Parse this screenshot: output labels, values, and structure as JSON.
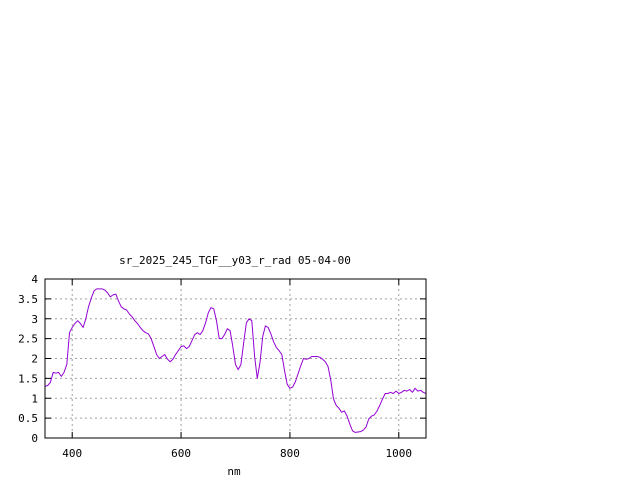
{
  "chart_data": {
    "type": "line",
    "title": "sr_2025_245_TGF__y03_r_rad 05-04-00",
    "xlabel": "nm",
    "ylabel": "",
    "xlim": [
      350,
      1050
    ],
    "ylim": [
      0,
      4
    ],
    "xticks": [
      400,
      600,
      800,
      1000
    ],
    "yticks": [
      0,
      0.5,
      1,
      1.5,
      2,
      2.5,
      3,
      3.5,
      4
    ],
    "ytick_labels": [
      "0",
      "0.5",
      "1",
      "1.5",
      "2",
      "2.5",
      "3",
      "3.5",
      "4"
    ],
    "grid": true,
    "series_color": "#9400d3",
    "series": [
      {
        "x": [
          350,
          355,
          360,
          365,
          370,
          375,
          380,
          385,
          390,
          395,
          400,
          405,
          410,
          415,
          420,
          425,
          430,
          435,
          440,
          445,
          450,
          455,
          460,
          465,
          470,
          475,
          480,
          485,
          490,
          495,
          500,
          505,
          510,
          515,
          520,
          525,
          530,
          535,
          540,
          545,
          550,
          555,
          560,
          565,
          570,
          575,
          580,
          585,
          590,
          595,
          600,
          605,
          610,
          615,
          620,
          625,
          630,
          635,
          640,
          645,
          650,
          655,
          660,
          665,
          670,
          675,
          680,
          685,
          690,
          695,
          700,
          705,
          710,
          715,
          720,
          725,
          730,
          735,
          740,
          745,
          750,
          755,
          760,
          765,
          770,
          775,
          780,
          785,
          790,
          795,
          800,
          805,
          810,
          815,
          820,
          825,
          830,
          835,
          840,
          845,
          850,
          855,
          860,
          865,
          870,
          875,
          880,
          885,
          890,
          895,
          900,
          905,
          910,
          915,
          920,
          925,
          930,
          935,
          940,
          945,
          950,
          955,
          960,
          965,
          970,
          975,
          980,
          985,
          990,
          995,
          1000,
          1005,
          1010,
          1015,
          1020,
          1025,
          1030,
          1035,
          1040,
          1045,
          1050
        ],
        "y": [
          1.3,
          1.32,
          1.4,
          1.65,
          1.63,
          1.65,
          1.55,
          1.65,
          1.85,
          2.65,
          2.78,
          2.88,
          2.95,
          2.88,
          2.78,
          3.0,
          3.3,
          3.52,
          3.7,
          3.75,
          3.75,
          3.75,
          3.72,
          3.65,
          3.55,
          3.6,
          3.62,
          3.45,
          3.3,
          3.25,
          3.22,
          3.12,
          3.05,
          2.95,
          2.88,
          2.78,
          2.7,
          2.65,
          2.62,
          2.5,
          2.3,
          2.1,
          2.0,
          2.05,
          2.1,
          1.98,
          1.92,
          1.98,
          2.1,
          2.2,
          2.3,
          2.32,
          2.25,
          2.3,
          2.45,
          2.6,
          2.65,
          2.6,
          2.7,
          2.9,
          3.15,
          3.28,
          3.25,
          2.95,
          2.5,
          2.5,
          2.6,
          2.75,
          2.7,
          2.3,
          1.85,
          1.72,
          1.85,
          2.4,
          2.9,
          3.0,
          2.95,
          2.05,
          1.5,
          1.9,
          2.55,
          2.82,
          2.78,
          2.62,
          2.42,
          2.28,
          2.2,
          2.1,
          1.7,
          1.35,
          1.25,
          1.28,
          1.42,
          1.62,
          1.82,
          2.0,
          1.98,
          2.0,
          2.05,
          2.05,
          2.05,
          2.03,
          1.98,
          1.92,
          1.8,
          1.45,
          0.98,
          0.82,
          0.75,
          0.65,
          0.68,
          0.55,
          0.35,
          0.18,
          0.14,
          0.15,
          0.16,
          0.2,
          0.28,
          0.48,
          0.55,
          0.58,
          0.68,
          0.82,
          0.98,
          1.12,
          1.12,
          1.15,
          1.12,
          1.18,
          1.12,
          1.15,
          1.2,
          1.18,
          1.22,
          1.15,
          1.25,
          1.18,
          1.2,
          1.15,
          1.12
        ]
      }
    ]
  }
}
